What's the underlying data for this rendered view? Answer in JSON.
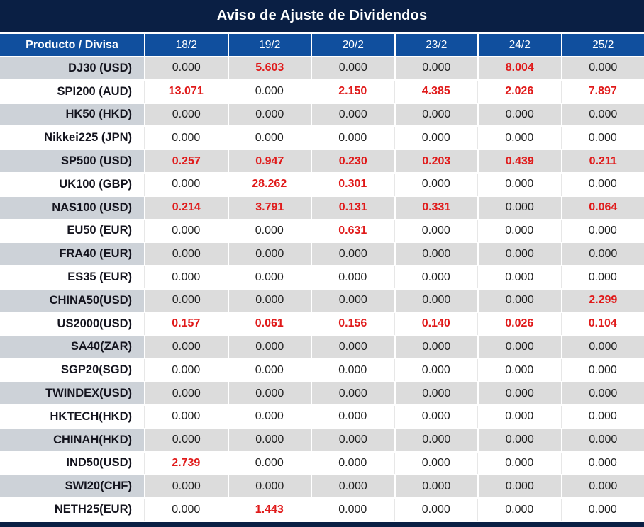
{
  "title": "Aviso de Ajuste de Dividendos",
  "colors": {
    "navy": "#0a1f44",
    "headerBlue": "#104f9e",
    "grayProduct": "#cdd2d8",
    "grayValue": "#dcdcdc",
    "red": "#e01a1a"
  },
  "table": {
    "product_header": "Producto / Divisa",
    "date_headers": [
      "18/2",
      "19/2",
      "20/2",
      "23/2",
      "24/2",
      "25/2"
    ],
    "rows": [
      {
        "product": "DJ30 (USD)",
        "values": [
          "0.000",
          "5.603",
          "0.000",
          "0.000",
          "8.004",
          "0.000"
        ]
      },
      {
        "product": "SPI200 (AUD)",
        "values": [
          "13.071",
          "0.000",
          "2.150",
          "4.385",
          "2.026",
          "7.897"
        ]
      },
      {
        "product": "HK50 (HKD)",
        "values": [
          "0.000",
          "0.000",
          "0.000",
          "0.000",
          "0.000",
          "0.000"
        ]
      },
      {
        "product": "Nikkei225 (JPN)",
        "values": [
          "0.000",
          "0.000",
          "0.000",
          "0.000",
          "0.000",
          "0.000"
        ]
      },
      {
        "product": "SP500 (USD)",
        "values": [
          "0.257",
          "0.947",
          "0.230",
          "0.203",
          "0.439",
          "0.211"
        ]
      },
      {
        "product": "UK100 (GBP)",
        "values": [
          "0.000",
          "28.262",
          "0.301",
          "0.000",
          "0.000",
          "0.000"
        ]
      },
      {
        "product": "NAS100 (USD)",
        "values": [
          "0.214",
          "3.791",
          "0.131",
          "0.331",
          "0.000",
          "0.064"
        ]
      },
      {
        "product": "EU50 (EUR)",
        "values": [
          "0.000",
          "0.000",
          "0.631",
          "0.000",
          "0.000",
          "0.000"
        ]
      },
      {
        "product": "FRA40 (EUR)",
        "values": [
          "0.000",
          "0.000",
          "0.000",
          "0.000",
          "0.000",
          "0.000"
        ]
      },
      {
        "product": "ES35 (EUR)",
        "values": [
          "0.000",
          "0.000",
          "0.000",
          "0.000",
          "0.000",
          "0.000"
        ]
      },
      {
        "product": "CHINA50(USD)",
        "values": [
          "0.000",
          "0.000",
          "0.000",
          "0.000",
          "0.000",
          "2.299"
        ]
      },
      {
        "product": "US2000(USD)",
        "values": [
          "0.157",
          "0.061",
          "0.156",
          "0.140",
          "0.026",
          "0.104"
        ]
      },
      {
        "product": "SA40(ZAR)",
        "values": [
          "0.000",
          "0.000",
          "0.000",
          "0.000",
          "0.000",
          "0.000"
        ]
      },
      {
        "product": "SGP20(SGD)",
        "values": [
          "0.000",
          "0.000",
          "0.000",
          "0.000",
          "0.000",
          "0.000"
        ]
      },
      {
        "product": "TWINDEX(USD)",
        "values": [
          "0.000",
          "0.000",
          "0.000",
          "0.000",
          "0.000",
          "0.000"
        ]
      },
      {
        "product": "HKTECH(HKD)",
        "values": [
          "0.000",
          "0.000",
          "0.000",
          "0.000",
          "0.000",
          "0.000"
        ]
      },
      {
        "product": "CHINAH(HKD)",
        "values": [
          "0.000",
          "0.000",
          "0.000",
          "0.000",
          "0.000",
          "0.000"
        ]
      },
      {
        "product": "IND50(USD)",
        "values": [
          "2.739",
          "0.000",
          "0.000",
          "0.000",
          "0.000",
          "0.000"
        ]
      },
      {
        "product": "SWI20(CHF)",
        "values": [
          "0.000",
          "0.000",
          "0.000",
          "0.000",
          "0.000",
          "0.000"
        ]
      },
      {
        "product": "NETH25(EUR)",
        "values": [
          "0.000",
          "1.443",
          "0.000",
          "0.000",
          "0.000",
          "0.000"
        ]
      }
    ]
  }
}
